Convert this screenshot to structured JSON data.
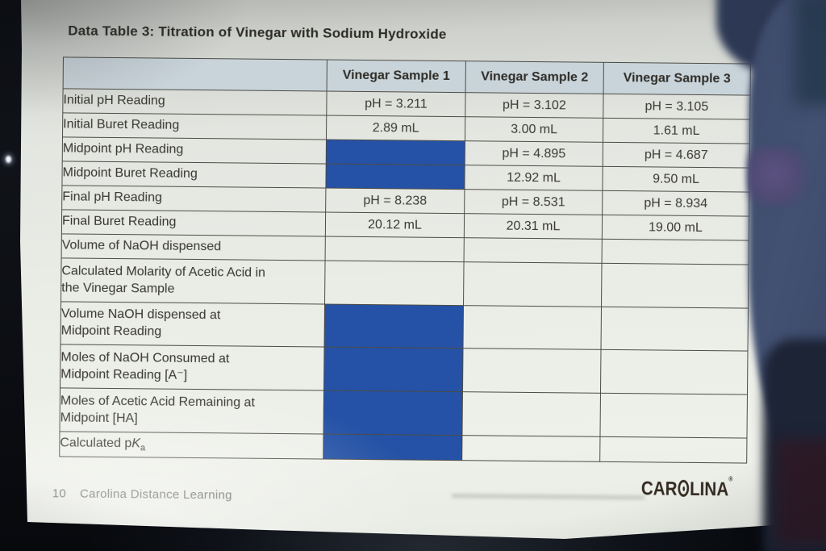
{
  "page": {
    "title": "Data Table 3: Titration of Vinegar with Sodium Hydroxide",
    "page_number": "10",
    "publisher": "Carolina Distance Learning",
    "logo": {
      "pre": "CAR",
      "post": "LINA",
      "reg": "®"
    }
  },
  "table": {
    "columns": [
      "",
      "Vinegar Sample 1",
      "Vinegar Sample 2",
      "Vinegar Sample 3"
    ],
    "rows": [
      {
        "lines": [
          "Initial pH Reading"
        ],
        "values": [
          "pH = 3.211",
          "pH = 3.102",
          "pH = 3.105"
        ],
        "highlight": [
          false,
          false,
          false
        ]
      },
      {
        "lines": [
          "Initial Buret Reading"
        ],
        "values": [
          "2.89 mL",
          "3.00 mL",
          "1.61 mL"
        ],
        "highlight": [
          false,
          false,
          false
        ]
      },
      {
        "lines": [
          "Midpoint pH Reading"
        ],
        "values": [
          "",
          "pH = 4.895",
          "pH = 4.687"
        ],
        "highlight": [
          true,
          false,
          false
        ]
      },
      {
        "lines": [
          "Midpoint Buret Reading"
        ],
        "values": [
          "",
          "12.92 mL",
          "9.50 mL"
        ],
        "highlight": [
          true,
          false,
          false
        ]
      },
      {
        "lines": [
          "Final pH Reading"
        ],
        "values": [
          "pH = 8.238",
          "pH = 8.531",
          "pH = 8.934"
        ],
        "highlight": [
          false,
          false,
          false
        ]
      },
      {
        "lines": [
          "Final Buret Reading"
        ],
        "values": [
          "20.12 mL",
          "20.31 mL",
          "19.00 mL"
        ],
        "highlight": [
          false,
          false,
          false
        ]
      },
      {
        "lines": [
          "Volume of NaOH dispensed"
        ],
        "values": [
          "",
          "",
          ""
        ],
        "highlight": [
          false,
          false,
          false
        ]
      },
      {
        "lines": [
          "Calculated Molarity of Acetic Acid in",
          "the Vinegar Sample"
        ],
        "values": [
          "",
          "",
          ""
        ],
        "highlight": [
          false,
          false,
          false
        ]
      },
      {
        "lines": [
          "Volume NaOH dispensed at",
          "Midpoint Reading"
        ],
        "values": [
          "",
          "",
          ""
        ],
        "highlight": [
          true,
          false,
          false
        ]
      },
      {
        "lines": [
          "Moles of NaOH Consumed at",
          "Midpoint Reading [A⁻]"
        ],
        "values": [
          "",
          "",
          ""
        ],
        "highlight": [
          true,
          false,
          false
        ]
      },
      {
        "lines": [
          "Moles of Acetic Acid Remaining at",
          "Midpoint [HA]"
        ],
        "values": [
          "",
          "",
          ""
        ],
        "highlight": [
          true,
          false,
          false
        ]
      },
      {
        "pka": {
          "pre": "Calculated p",
          "k": "K",
          "sub": "a"
        },
        "values": [
          "",
          "",
          ""
        ],
        "highlight": [
          true,
          false,
          false
        ]
      }
    ]
  },
  "colors": {
    "highlight_blue": "#2552a6",
    "header_row_bg": "#c9d4da",
    "table_line": "#4c4b45",
    "paper_white": "#eaece6",
    "glove_blue": "#3e4b6b"
  }
}
